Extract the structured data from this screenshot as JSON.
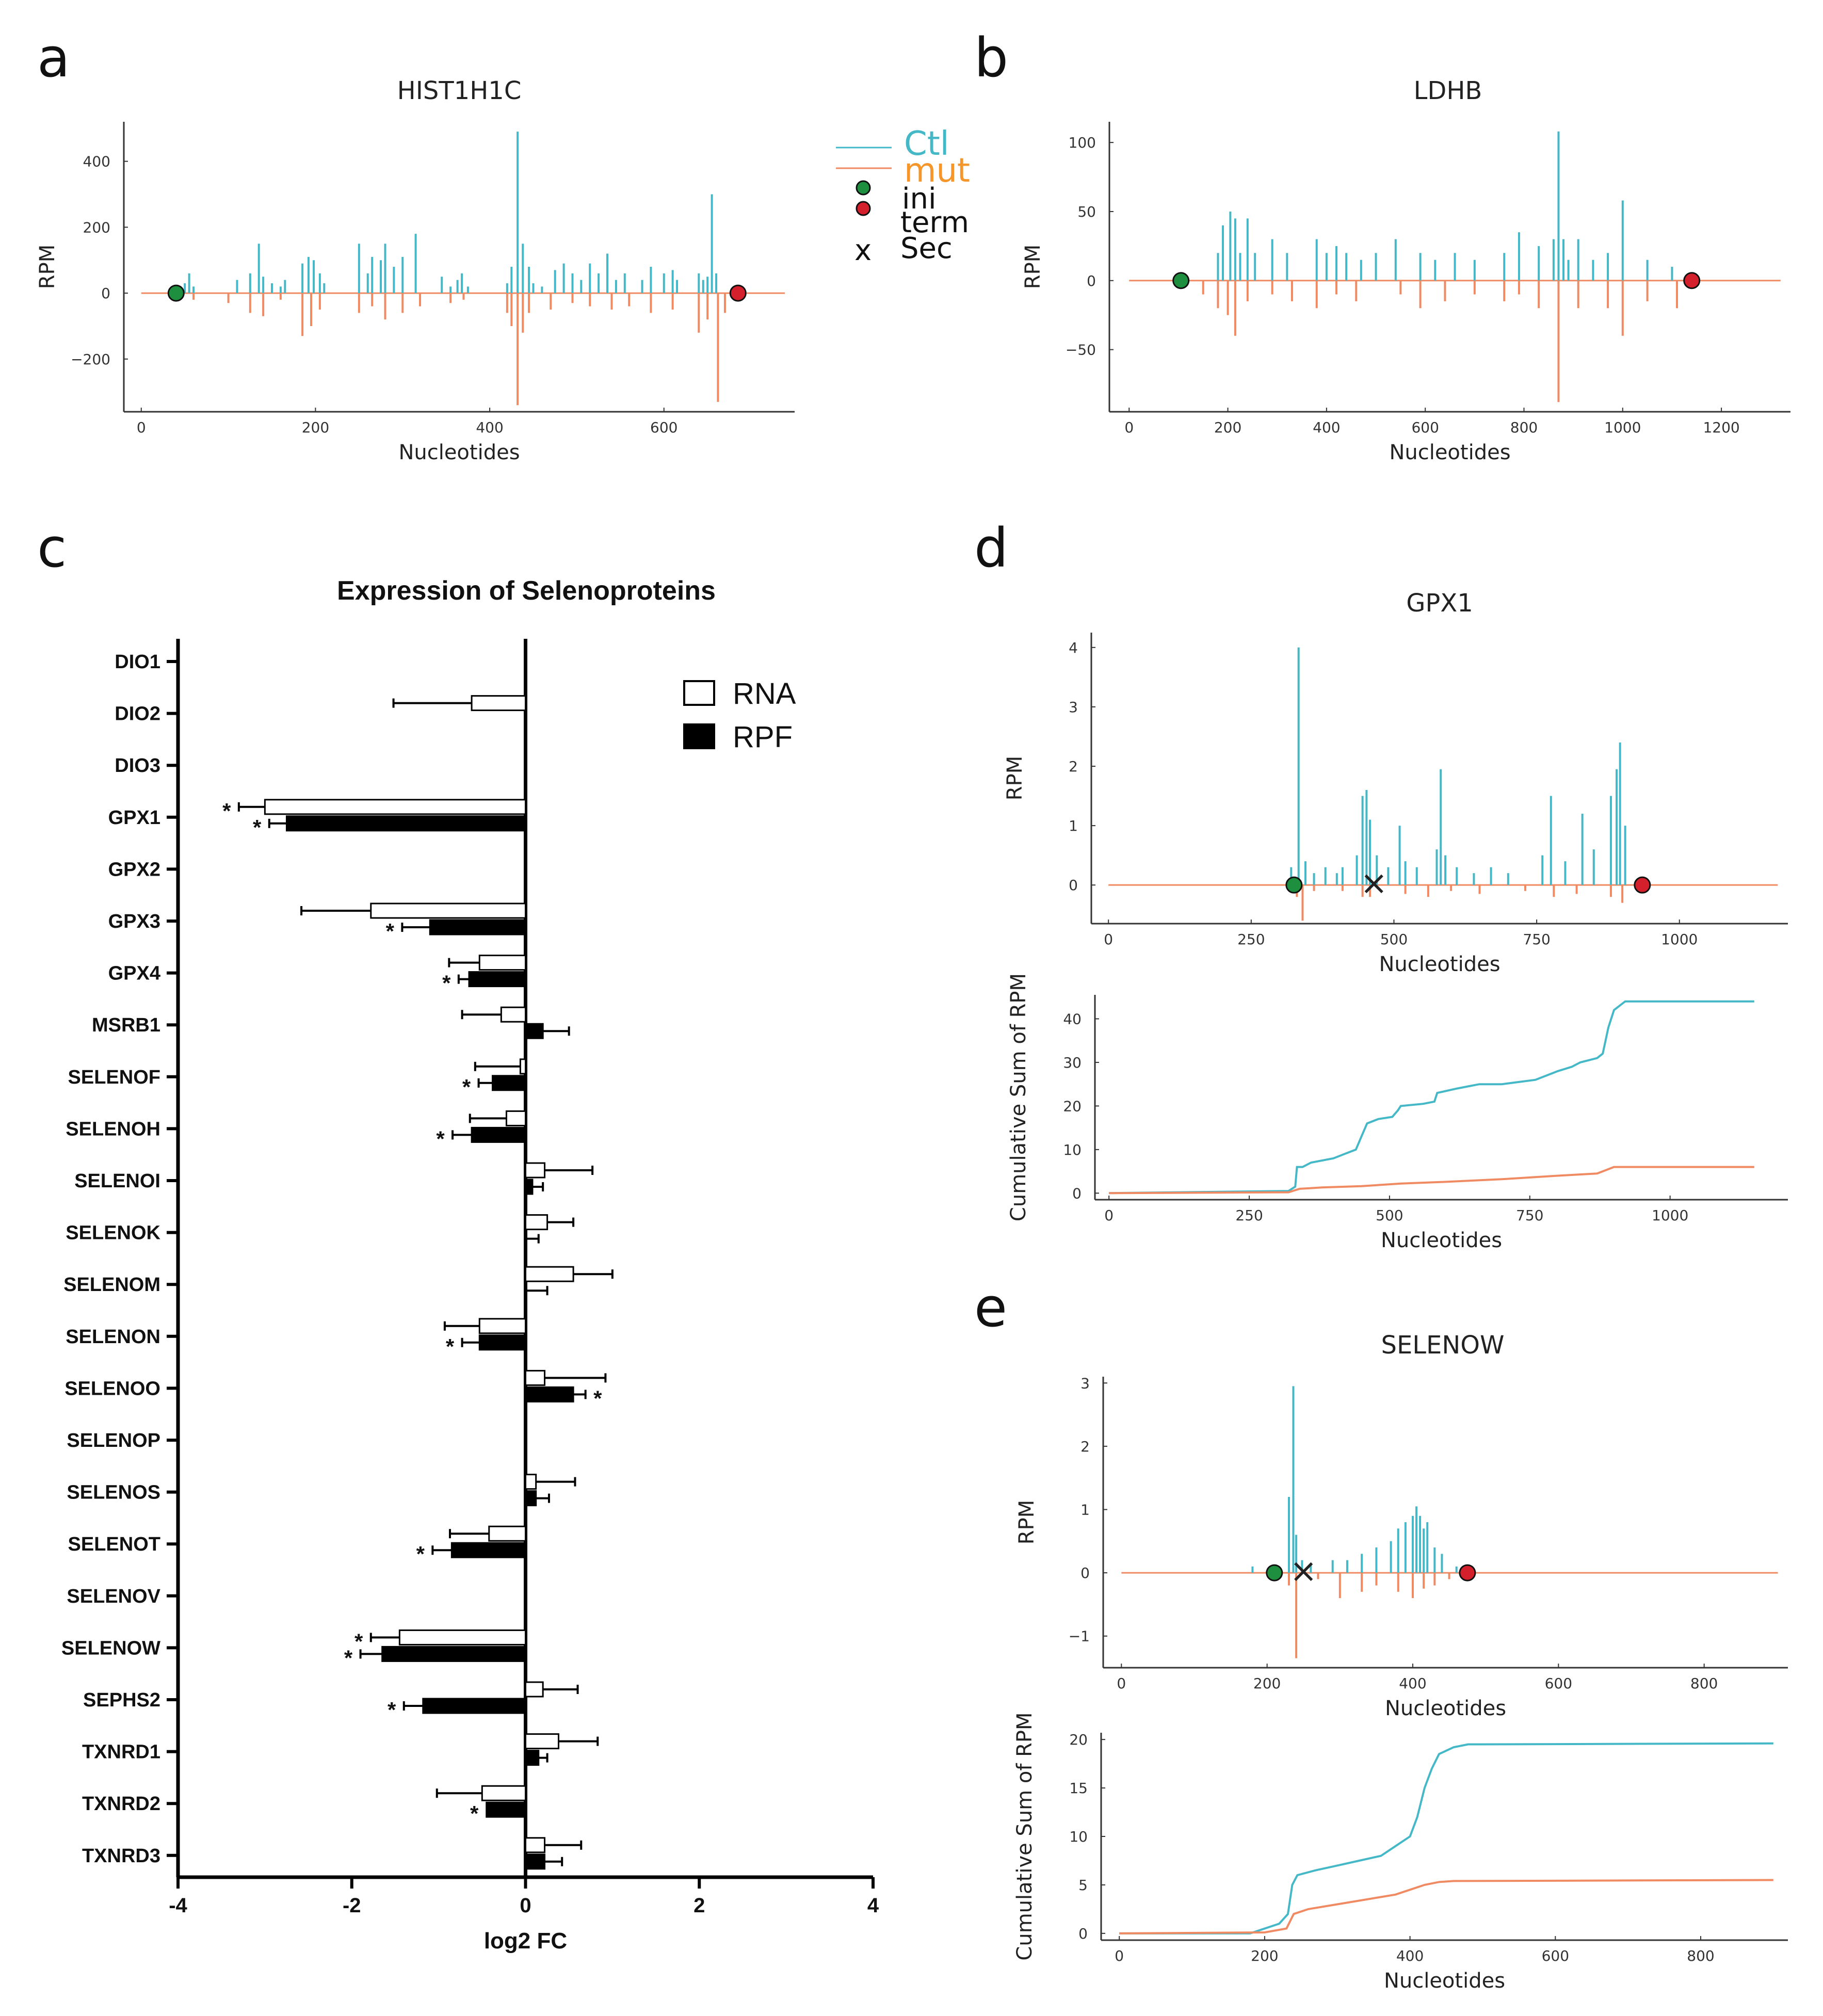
{
  "figure_labels": {
    "a": "a",
    "b": "b",
    "c": "c",
    "d": "d",
    "e": "e"
  },
  "legend_profile": {
    "ctl": "Ctl",
    "mut": "mut",
    "ini": "ini",
    "term": "term",
    "sec_marker": "x",
    "sec": "Sec"
  },
  "colors": {
    "ctl": "#45b8c8",
    "mut": "#ef8a62",
    "ini": "#1e8f3e",
    "term": "#d4202c",
    "rna_bar": "#ffffff",
    "rpf_bar": "#000000"
  },
  "chart_data": [
    {
      "id": "a",
      "type": "line",
      "title": "HIST1H1C",
      "xlabel": "Nucleotides",
      "ylabel": "RPM",
      "xlim": [
        -20,
        750
      ],
      "ylim": [
        -360,
        520
      ],
      "xticks": [
        0,
        200,
        400,
        600
      ],
      "xtick_labels": [
        "0",
        "200",
        "400",
        "600"
      ],
      "yticks": [
        -200,
        0,
        200,
        400
      ],
      "ytick_labels": [
        "−200",
        "0",
        "200",
        "400"
      ],
      "series": [
        {
          "name": "Ctl",
          "x": [
            50,
            55,
            60,
            110,
            125,
            135,
            140,
            150,
            160,
            165,
            185,
            192,
            198,
            205,
            210,
            250,
            260,
            265,
            275,
            280,
            290,
            300,
            315,
            345,
            355,
            363,
            368,
            375,
            420,
            425,
            432,
            438,
            445,
            450,
            460,
            475,
            485,
            495,
            505,
            515,
            525,
            535,
            545,
            555,
            575,
            585,
            600,
            610,
            615,
            640,
            645,
            650,
            655,
            660
          ],
          "y": [
            30,
            60,
            20,
            40,
            60,
            150,
            50,
            30,
            20,
            40,
            90,
            110,
            100,
            60,
            30,
            150,
            60,
            110,
            100,
            150,
            80,
            110,
            180,
            50,
            20,
            40,
            60,
            20,
            30,
            80,
            490,
            150,
            80,
            30,
            20,
            70,
            90,
            60,
            40,
            90,
            60,
            120,
            40,
            60,
            40,
            80,
            60,
            70,
            40,
            60,
            40,
            50,
            300,
            60
          ]
        },
        {
          "name": "mut",
          "x": [
            60,
            100,
            125,
            140,
            160,
            185,
            195,
            205,
            250,
            265,
            280,
            300,
            320,
            355,
            370,
            420,
            425,
            432,
            438,
            445,
            470,
            495,
            515,
            540,
            560,
            585,
            610,
            640,
            650,
            662,
            670
          ],
          "y": [
            -20,
            -30,
            -60,
            -70,
            -20,
            -130,
            -100,
            -50,
            -60,
            -40,
            -80,
            -60,
            -40,
            -30,
            -20,
            -60,
            -100,
            -340,
            -120,
            -60,
            -50,
            -30,
            -40,
            -50,
            -40,
            -60,
            -50,
            -120,
            -80,
            -330,
            -60
          ]
        }
      ],
      "markers": {
        "ini": 40,
        "term": 685
      }
    },
    {
      "id": "b",
      "type": "line",
      "title": "LDHB",
      "xlabel": "Nucleotides",
      "ylabel": "RPM",
      "xlim": [
        -40,
        1340
      ],
      "ylim": [
        -95,
        115
      ],
      "xticks": [
        0,
        200,
        400,
        600,
        800,
        1000,
        1200
      ],
      "xtick_labels": [
        "0",
        "200",
        "400",
        "600",
        "800",
        "1000",
        "1200"
      ],
      "yticks": [
        -50,
        0,
        50,
        100
      ],
      "ytick_labels": [
        "−50",
        "0",
        "50",
        "100"
      ],
      "series": [
        {
          "name": "Ctl",
          "x": [
            180,
            190,
            205,
            215,
            225,
            240,
            255,
            290,
            320,
            380,
            400,
            420,
            440,
            470,
            500,
            540,
            590,
            620,
            660,
            700,
            760,
            790,
            830,
            860,
            870,
            880,
            890,
            910,
            940,
            970,
            1000,
            1050,
            1100
          ],
          "y": [
            20,
            40,
            50,
            45,
            20,
            45,
            20,
            30,
            20,
            30,
            20,
            25,
            20,
            15,
            20,
            30,
            20,
            15,
            20,
            15,
            20,
            35,
            25,
            30,
            108,
            30,
            15,
            30,
            15,
            20,
            58,
            15,
            10
          ]
        },
        {
          "name": "mut",
          "x": [
            150,
            180,
            200,
            215,
            240,
            290,
            330,
            380,
            420,
            460,
            550,
            590,
            640,
            700,
            760,
            790,
            830,
            870,
            910,
            970,
            1000,
            1050,
            1110
          ],
          "y": [
            -10,
            -20,
            -25,
            -40,
            -15,
            -10,
            -15,
            -20,
            -10,
            -15,
            -10,
            -20,
            -15,
            -10,
            -15,
            -10,
            -20,
            -88,
            -20,
            -20,
            -40,
            -15,
            -20
          ]
        }
      ],
      "markers": {
        "ini": 105,
        "term": 1140
      }
    },
    {
      "id": "c",
      "type": "bar",
      "orientation": "horizontal",
      "title": "Expression of Selenoproteins",
      "xlabel": "log2 FC",
      "ylabel": "",
      "xlim": [
        -4,
        4
      ],
      "xticks": [
        -4,
        -2,
        0,
        2,
        4
      ],
      "xtick_labels": [
        "-4",
        "-2",
        "0",
        "2",
        "4"
      ],
      "categories": [
        "DIO1",
        "DIO2",
        "DIO3",
        "GPX1",
        "GPX2",
        "GPX3",
        "GPX4",
        "MSRB1",
        "SELENOF",
        "SELENOH",
        "SELENOI",
        "SELENOK",
        "SELENOM",
        "SELENON",
        "SELENOO",
        "SELENOP",
        "SELENOS",
        "SELENOT",
        "SELENOV",
        "SELENOW",
        "SEPHS2",
        "TXNRD1",
        "TXNRD2",
        "TXNRD3"
      ],
      "series": [
        {
          "name": "RNA",
          "values": [
            null,
            -0.62,
            null,
            -3.0,
            null,
            -1.78,
            -0.53,
            -0.28,
            -0.06,
            -0.22,
            0.22,
            0.25,
            0.55,
            -0.53,
            0.22,
            null,
            0.12,
            -0.42,
            null,
            -1.45,
            0.2,
            0.38,
            -0.5,
            0.22
          ],
          "errors": [
            null,
            0.9,
            null,
            0.3,
            null,
            0.8,
            0.35,
            0.45,
            0.52,
            0.42,
            0.55,
            0.3,
            0.45,
            0.4,
            0.7,
            null,
            0.45,
            0.45,
            null,
            0.33,
            0.4,
            0.45,
            0.52,
            0.42
          ],
          "sig": [
            false,
            false,
            false,
            true,
            false,
            false,
            false,
            false,
            false,
            false,
            false,
            false,
            false,
            false,
            false,
            false,
            false,
            false,
            false,
            true,
            false,
            false,
            false,
            false
          ]
        },
        {
          "name": "RPF",
          "values": [
            null,
            null,
            null,
            -2.75,
            null,
            -1.1,
            -0.65,
            0.2,
            -0.38,
            -0.62,
            0.08,
            0.0,
            0.0,
            -0.53,
            0.55,
            null,
            0.12,
            -0.85,
            null,
            -1.65,
            -1.18,
            0.15,
            -0.45,
            0.22
          ],
          "errors": [
            null,
            null,
            null,
            0.2,
            null,
            0.32,
            0.12,
            0.3,
            0.16,
            0.22,
            0.12,
            0.15,
            0.25,
            0.2,
            0.14,
            null,
            0.15,
            0.22,
            null,
            0.25,
            0.22,
            0.1,
            0.0,
            0.2
          ],
          "sig": [
            false,
            false,
            false,
            true,
            false,
            true,
            true,
            false,
            true,
            true,
            false,
            false,
            false,
            true,
            true,
            false,
            false,
            true,
            false,
            true,
            true,
            false,
            true,
            false
          ]
        }
      ],
      "sig_marker": "*"
    },
    {
      "id": "d_profile",
      "type": "line",
      "title": "GPX1",
      "xlabel": "Nucleotides",
      "ylabel": "RPM",
      "xlim": [
        -30,
        1190
      ],
      "ylim": [
        -0.65,
        4.25
      ],
      "xticks": [
        0,
        250,
        500,
        750,
        1000
      ],
      "xtick_labels": [
        "0",
        "250",
        "500",
        "750",
        "1000"
      ],
      "yticks": [
        0,
        1,
        2,
        3,
        4
      ],
      "ytick_labels": [
        "0",
        "1",
        "2",
        "3",
        "4"
      ],
      "series": [
        {
          "name": "Ctl",
          "x": [
            320,
            333,
            345,
            360,
            380,
            400,
            410,
            435,
            445,
            452,
            458,
            470,
            490,
            510,
            520,
            540,
            575,
            582,
            590,
            610,
            640,
            670,
            700,
            760,
            775,
            800,
            830,
            850,
            880,
            890,
            896,
            905
          ],
          "y": [
            0.3,
            4.0,
            0.4,
            0.2,
            0.3,
            0.2,
            0.3,
            0.5,
            1.5,
            1.6,
            1.1,
            0.5,
            0.3,
            1.0,
            0.4,
            0.3,
            0.6,
            1.95,
            0.5,
            0.3,
            0.2,
            0.3,
            0.2,
            0.5,
            1.5,
            0.4,
            1.2,
            0.6,
            1.5,
            1.95,
            2.4,
            1.0
          ]
        },
        {
          "name": "mut",
          "x": [
            330,
            340,
            360,
            410,
            445,
            458,
            520,
            560,
            600,
            650,
            730,
            780,
            820,
            880,
            900
          ],
          "y": [
            -0.2,
            -0.6,
            -0.1,
            -0.1,
            -0.2,
            -0.2,
            -0.15,
            -0.2,
            -0.1,
            -0.15,
            -0.1,
            -0.2,
            -0.15,
            -0.2,
            -0.3
          ]
        }
      ],
      "markers": {
        "ini": 325,
        "term": 935,
        "sec": 465
      }
    },
    {
      "id": "d_cumsum",
      "type": "line",
      "title": "",
      "xlabel": "Nucleotides",
      "ylabel": "Cumulative Sum of RPM",
      "xlim": [
        -25,
        1210
      ],
      "ylim": [
        -1.5,
        45.5
      ],
      "xticks": [
        0,
        250,
        500,
        750,
        1000
      ],
      "xtick_labels": [
        "0",
        "250",
        "500",
        "750",
        "1000"
      ],
      "yticks": [
        0,
        10,
        20,
        30,
        40
      ],
      "ytick_labels": [
        "0",
        "10",
        "20",
        "30",
        "40"
      ],
      "series": [
        {
          "name": "Ctl",
          "x": [
            0,
            320,
            332,
            335,
            345,
            360,
            400,
            420,
            440,
            450,
            460,
            480,
            505,
            515,
            520,
            560,
            580,
            585,
            620,
            640,
            660,
            700,
            760,
            780,
            800,
            825,
            840,
            870,
            880,
            885,
            890,
            900,
            920,
            1150
          ],
          "y": [
            0,
            0.5,
            1.5,
            6,
            6,
            7,
            8,
            9,
            10,
            13,
            16,
            17,
            17.5,
            19,
            20,
            20.5,
            21,
            23,
            24,
            24.5,
            25,
            25,
            26,
            27,
            28,
            29,
            30,
            31,
            32,
            35,
            38,
            42,
            44,
            44
          ]
        },
        {
          "name": "mut",
          "x": [
            0,
            320,
            340,
            380,
            450,
            520,
            600,
            700,
            800,
            870,
            890,
            900,
            1150
          ],
          "y": [
            0,
            0.2,
            1,
            1.3,
            1.6,
            2.2,
            2.6,
            3.2,
            4,
            4.5,
            5.5,
            6,
            6
          ]
        }
      ]
    },
    {
      "id": "e_profile",
      "type": "line",
      "title": "SELENOW",
      "xlabel": "Nucleotides",
      "ylabel": "RPM",
      "xlim": [
        -25,
        915
      ],
      "ylim": [
        -1.5,
        3.1
      ],
      "xticks": [
        0,
        200,
        400,
        600,
        800
      ],
      "xtick_labels": [
        "0",
        "200",
        "400",
        "600",
        "800"
      ],
      "yticks": [
        -1,
        0,
        1,
        2,
        3
      ],
      "ytick_labels": [
        "−1",
        "0",
        "1",
        "2",
        "3"
      ],
      "series": [
        {
          "name": "Ctl",
          "x": [
            180,
            230,
            236,
            240,
            248,
            260,
            290,
            310,
            330,
            350,
            370,
            380,
            390,
            400,
            405,
            410,
            415,
            420,
            430,
            440,
            460
          ],
          "y": [
            0.1,
            1.2,
            2.95,
            0.6,
            0.2,
            0.15,
            0.2,
            0.2,
            0.3,
            0.4,
            0.5,
            0.7,
            0.8,
            0.9,
            1.05,
            0.9,
            0.7,
            0.8,
            0.4,
            0.3,
            0.1
          ]
        },
        {
          "name": "mut",
          "x": [
            230,
            240,
            270,
            300,
            330,
            350,
            380,
            400,
            415,
            430,
            450
          ],
          "y": [
            -0.2,
            -1.35,
            -0.1,
            -0.4,
            -0.3,
            -0.2,
            -0.3,
            -0.4,
            -0.25,
            -0.2,
            -0.1
          ]
        }
      ],
      "markers": {
        "ini": 210,
        "term": 475,
        "sec": 250
      }
    },
    {
      "id": "e_cumsum",
      "type": "line",
      "title": "",
      "xlabel": "Nucleotides",
      "ylabel": "Cumulative Sum of RPM",
      "xlim": [
        -25,
        920
      ],
      "ylim": [
        -0.7,
        20.7
      ],
      "xticks": [
        0,
        200,
        400,
        600,
        800
      ],
      "xtick_labels": [
        "0",
        "200",
        "400",
        "600",
        "800"
      ],
      "yticks": [
        0,
        5,
        10,
        15,
        20
      ],
      "ytick_labels": [
        "0",
        "5",
        "10",
        "15",
        "20"
      ],
      "series": [
        {
          "name": "Ctl",
          "x": [
            0,
            180,
            220,
            232,
            238,
            245,
            270,
            300,
            330,
            360,
            380,
            400,
            410,
            420,
            430,
            440,
            460,
            480,
            500,
            900
          ],
          "y": [
            0,
            0,
            1,
            2,
            5,
            6,
            6.5,
            7,
            7.5,
            8,
            9,
            10,
            12,
            15,
            17,
            18.5,
            19.2,
            19.5,
            19.5,
            19.6
          ]
        },
        {
          "name": "mut",
          "x": [
            0,
            200,
            230,
            240,
            260,
            300,
            340,
            380,
            400,
            420,
            440,
            460,
            900
          ],
          "y": [
            0,
            0.1,
            0.5,
            2,
            2.5,
            3,
            3.5,
            4,
            4.5,
            5,
            5.3,
            5.4,
            5.5
          ]
        }
      ]
    }
  ],
  "legend_bar": {
    "rna": "RNA",
    "rpf": "RPF"
  }
}
